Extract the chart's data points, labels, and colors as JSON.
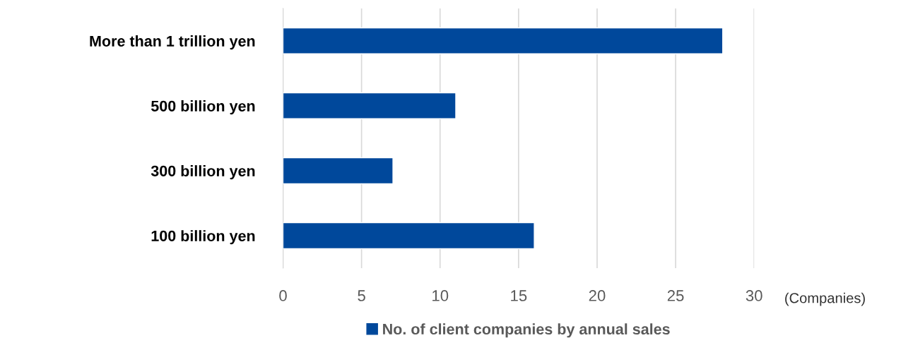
{
  "chart_data": {
    "type": "bar",
    "orientation": "horizontal",
    "categories": [
      "More than 1 trillion yen",
      "500 billion yen",
      "300 billion yen",
      "100 billion yen"
    ],
    "series": [
      {
        "name": "No. of client companies by annual sales",
        "color": "#00489b",
        "values": [
          28,
          11,
          7,
          16
        ]
      }
    ],
    "xlabel": "(Companies)",
    "xlim": [
      0,
      30
    ],
    "xticks": [
      0,
      5,
      10,
      15,
      20,
      25,
      30
    ],
    "grid": "x",
    "legend": "bottom"
  }
}
